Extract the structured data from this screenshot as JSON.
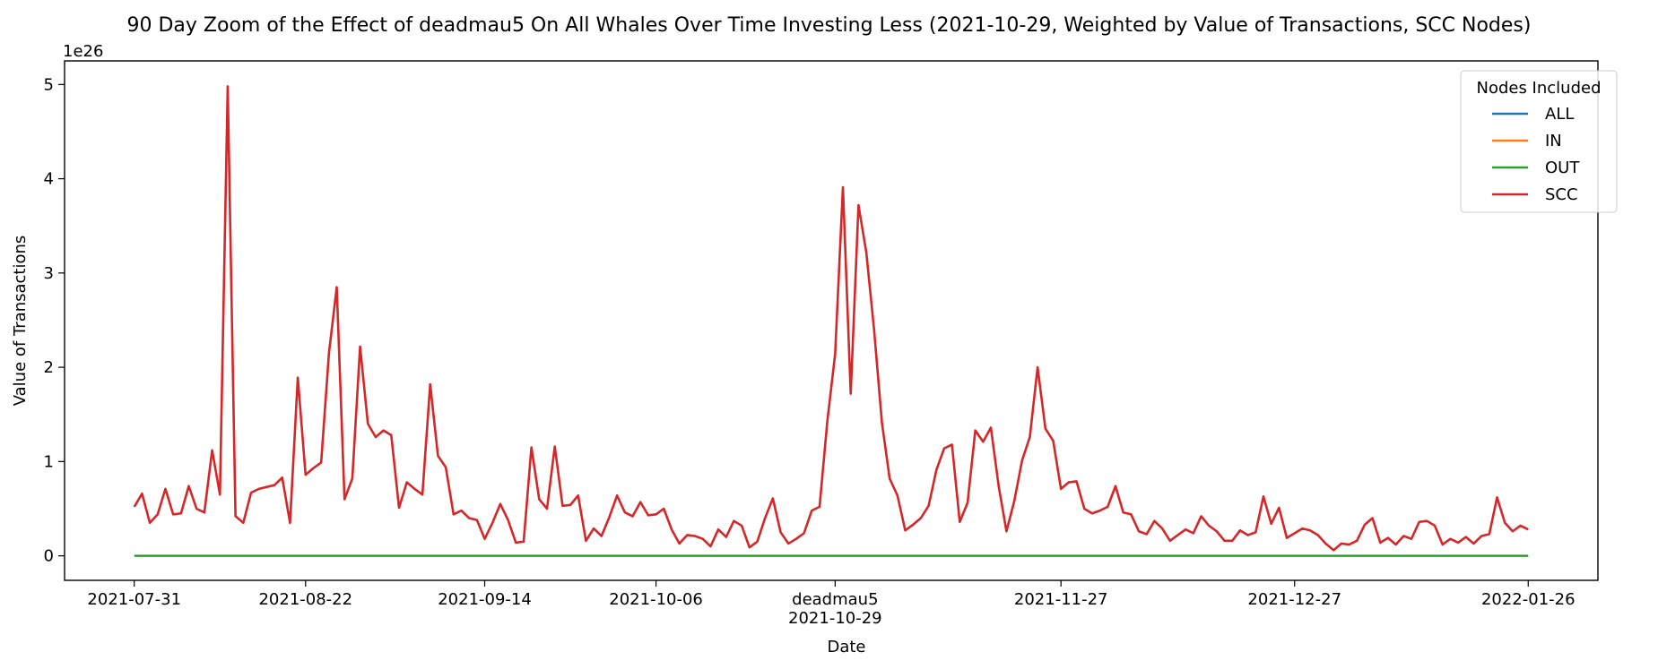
{
  "chart_data": {
    "type": "line",
    "title": "90 Day Zoom of the Effect of deadmau5 On All Whales Over Time Investing Less (2021-10-29, Weighted by Value of Transactions, SCC Nodes)",
    "xlabel": "Date",
    "ylabel": "Value of Transactions",
    "y_scale_label": "1e26",
    "y_unit_multiplier": 1e+26,
    "ylim": [
      -0.26,
      5.25
    ],
    "x_start": "2021-07-31",
    "x_end": "2022-01-26",
    "x_tick_labels": [
      "2021-07-31",
      "2021-08-22",
      "2021-09-14",
      "2021-10-06",
      "2021-11-27",
      "2021-12-27",
      "2022-01-26"
    ],
    "event_tick": {
      "label": "deadmau5",
      "date": "2021-10-29"
    },
    "y_ticks": [
      0,
      1,
      2,
      3,
      4,
      5
    ],
    "legend": {
      "title": "Nodes Included",
      "placement": "top-right"
    },
    "grid": false,
    "series": [
      {
        "name": "ALL",
        "color": "#1f77b4",
        "values": []
      },
      {
        "name": "IN",
        "color": "#ff7f0e",
        "values": []
      },
      {
        "name": "OUT",
        "color": "#2ca02c",
        "values": [
          0.0,
          0.0,
          0.0,
          0.0,
          0.0,
          0.0,
          0.0,
          0.0,
          0.0,
          0.0,
          0.0,
          0.0,
          0.0,
          0.0,
          0.0,
          0.0,
          0.0,
          0.0,
          0.0,
          0.0,
          0.0,
          0.0,
          0.0,
          0.0,
          0.0,
          0.0,
          0.0,
          0.0,
          0.0,
          0.0,
          0.0,
          0.0,
          0.0,
          0.0,
          0.0,
          0.0,
          0.0,
          0.0,
          0.0,
          0.0,
          0.0,
          0.0,
          0.0,
          0.0,
          0.0,
          0.0,
          0.0,
          0.0,
          0.0,
          0.0,
          0.0,
          0.0,
          0.0,
          0.0,
          0.0,
          0.0,
          0.0,
          0.0,
          0.0,
          0.0,
          0.0,
          0.0,
          0.0,
          0.0,
          0.0,
          0.0,
          0.0,
          0.0,
          0.0,
          0.0,
          0.0,
          0.0,
          0.0,
          0.0,
          0.0,
          0.0,
          0.0,
          0.0,
          0.0,
          0.0,
          0.0,
          0.0,
          0.0,
          0.0,
          0.0,
          0.0,
          0.0,
          0.0,
          0.0,
          0.0,
          0.0,
          0.0,
          0.0,
          0.0,
          0.0,
          0.0,
          0.0,
          0.0,
          0.0,
          0.0,
          0.0,
          0.0,
          0.0,
          0.0,
          0.0,
          0.0,
          0.0,
          0.0,
          0.0,
          0.0,
          0.0,
          0.0,
          0.0,
          0.0,
          0.0,
          0.0,
          0.0,
          0.0,
          0.0,
          0.0,
          0.0,
          0.0,
          0.0,
          0.0,
          0.0,
          0.0,
          0.0,
          0.0,
          0.0,
          0.0,
          0.0,
          0.0,
          0.0,
          0.0,
          0.0,
          0.0,
          0.0,
          0.0,
          0.0,
          0.0,
          0.0,
          0.0,
          0.0,
          0.0,
          0.0,
          0.0,
          0.0,
          0.0,
          0.0,
          0.0,
          0.0,
          0.0,
          0.0,
          0.0,
          0.0,
          0.0,
          0.0,
          0.0,
          0.0,
          0.0,
          0.0,
          0.0,
          0.0,
          0.0,
          0.0,
          0.0,
          0.0,
          0.0,
          0.0,
          0.0,
          0.0,
          0.0,
          0.0,
          0.0,
          0.0,
          0.0,
          0.0,
          0.0,
          0.0,
          0.0,
          0.0
        ]
      },
      {
        "name": "SCC",
        "color": "#d62728",
        "values": [
          0.52,
          0.66,
          0.35,
          0.44,
          0.71,
          0.44,
          0.45,
          0.74,
          0.5,
          0.46,
          1.12,
          0.65,
          4.98,
          0.42,
          0.35,
          0.67,
          0.71,
          0.73,
          0.75,
          0.83,
          0.35,
          1.89,
          0.86,
          0.93,
          0.99,
          2.15,
          2.85,
          0.6,
          0.82,
          2.22,
          1.4,
          1.26,
          1.33,
          1.28,
          0.51,
          0.78,
          0.71,
          0.65,
          1.82,
          1.06,
          0.94,
          0.44,
          0.48,
          0.4,
          0.38,
          0.18,
          0.35,
          0.55,
          0.38,
          0.14,
          0.15,
          1.15,
          0.6,
          0.5,
          1.16,
          0.53,
          0.54,
          0.64,
          0.16,
          0.29,
          0.21,
          0.41,
          0.64,
          0.46,
          0.42,
          0.57,
          0.43,
          0.44,
          0.5,
          0.28,
          0.13,
          0.22,
          0.21,
          0.18,
          0.1,
          0.28,
          0.2,
          0.37,
          0.32,
          0.09,
          0.15,
          0.4,
          0.61,
          0.25,
          0.13,
          0.18,
          0.24,
          0.48,
          0.52,
          1.43,
          2.14,
          3.91,
          1.72,
          3.72,
          3.22,
          2.4,
          1.42,
          0.82,
          0.64,
          0.27,
          0.33,
          0.4,
          0.53,
          0.91,
          1.14,
          1.18,
          0.36,
          0.56,
          1.33,
          1.21,
          1.36,
          0.74,
          0.26,
          0.58,
          1.01,
          1.26,
          2.0,
          1.35,
          1.22,
          0.71,
          0.78,
          0.79,
          0.5,
          0.45,
          0.48,
          0.52,
          0.74,
          0.46,
          0.44,
          0.26,
          0.23,
          0.37,
          0.29,
          0.16,
          0.22,
          0.28,
          0.24,
          0.42,
          0.32,
          0.26,
          0.16,
          0.16,
          0.27,
          0.22,
          0.25,
          0.63,
          0.34,
          0.51,
          0.19,
          0.24,
          0.29,
          0.27,
          0.22,
          0.13,
          0.06,
          0.13,
          0.12,
          0.16,
          0.33,
          0.4,
          0.14,
          0.19,
          0.12,
          0.21,
          0.18,
          0.36,
          0.37,
          0.32,
          0.12,
          0.18,
          0.14,
          0.2,
          0.13,
          0.21,
          0.23,
          0.62,
          0.35,
          0.26,
          0.32,
          0.28
        ]
      }
    ]
  }
}
